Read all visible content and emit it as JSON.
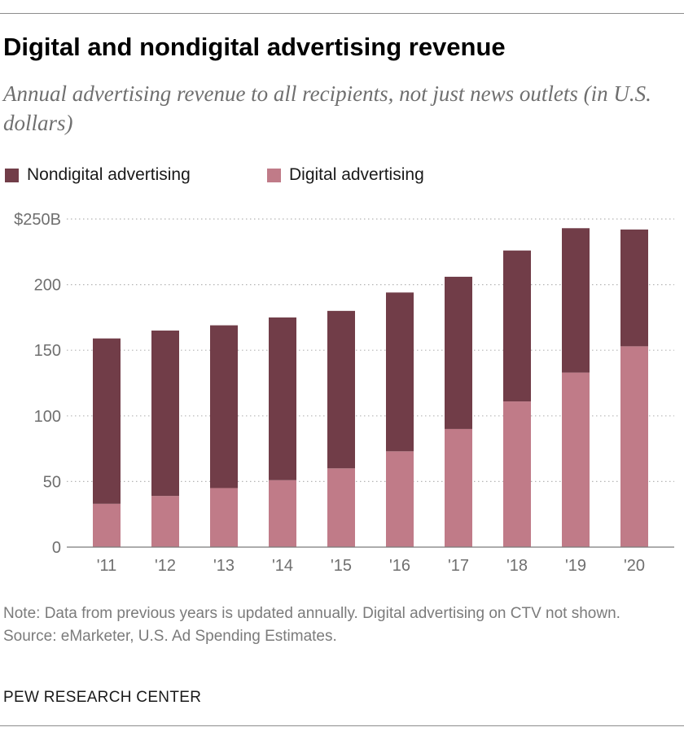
{
  "title": "Digital and nondigital advertising revenue",
  "subtitle": "Annual advertising revenue to all recipients, not just news outlets (in U.S. dollars)",
  "colors": {
    "nondigital": "#713d48",
    "digital": "#c07b88",
    "grid": "#b5b5b5",
    "tick_text": "#6f6f6f"
  },
  "chart_data": {
    "type": "bar",
    "stacked": true,
    "categories": [
      "'11",
      "'12",
      "'13",
      "'14",
      "'15",
      "'16",
      "'17",
      "'18",
      "'19",
      "'20"
    ],
    "series": [
      {
        "name": "Digital advertising",
        "values": [
          33,
          39,
          45,
          51,
          60,
          73,
          90,
          111,
          133,
          153
        ]
      },
      {
        "name": "Nondigital advertising",
        "values": [
          126,
          126,
          124,
          124,
          120,
          121,
          116,
          115,
          110,
          89
        ]
      }
    ],
    "y_ticks": [
      {
        "value": 0,
        "label": "0"
      },
      {
        "value": 50,
        "label": "50"
      },
      {
        "value": 100,
        "label": "100"
      },
      {
        "value": 150,
        "label": "150"
      },
      {
        "value": 200,
        "label": "200"
      },
      {
        "value": 250,
        "label": "$250B"
      }
    ],
    "ylim": [
      0,
      250
    ],
    "grid": true,
    "legend_position": "top-left"
  },
  "notes": {
    "note": "Note: Data from previous years is updated annually. Digital advertising on CTV not shown.",
    "source": "Source: eMarketer, U.S. Ad Spending Estimates."
  },
  "organization": "PEW RESEARCH CENTER"
}
